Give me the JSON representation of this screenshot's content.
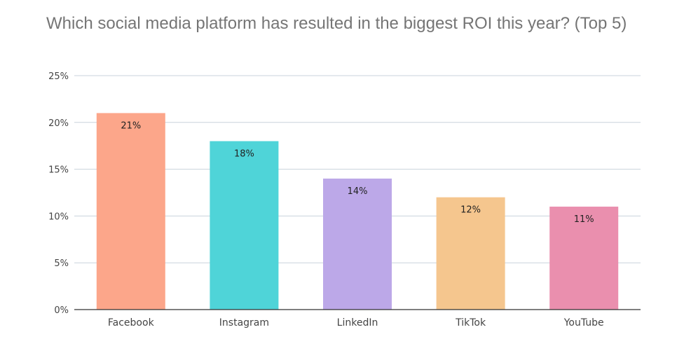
{
  "chart_data": {
    "type": "bar",
    "title": "Which social media platform has resulted in the biggest ROI this year? (Top 5)",
    "categories": [
      "Facebook",
      "Instagram",
      "LinkedIn",
      "TikTok",
      "YouTube"
    ],
    "values": [
      21,
      18,
      14,
      12,
      11
    ],
    "data_labels": [
      "21%",
      "18%",
      "14%",
      "12%",
      "11%"
    ],
    "bar_colors": [
      "#fca68a",
      "#4fd4d8",
      "#bca8e8",
      "#f5c68e",
      "#ea8fae"
    ],
    "yticks": [
      0,
      5,
      10,
      15,
      20,
      25
    ],
    "ytick_labels": [
      "0%",
      "5%",
      "10%",
      "15%",
      "20%",
      "25%"
    ],
    "ylim": [
      0,
      25
    ],
    "xlabel": "",
    "ylabel": "",
    "grid": true,
    "legend": "none"
  }
}
